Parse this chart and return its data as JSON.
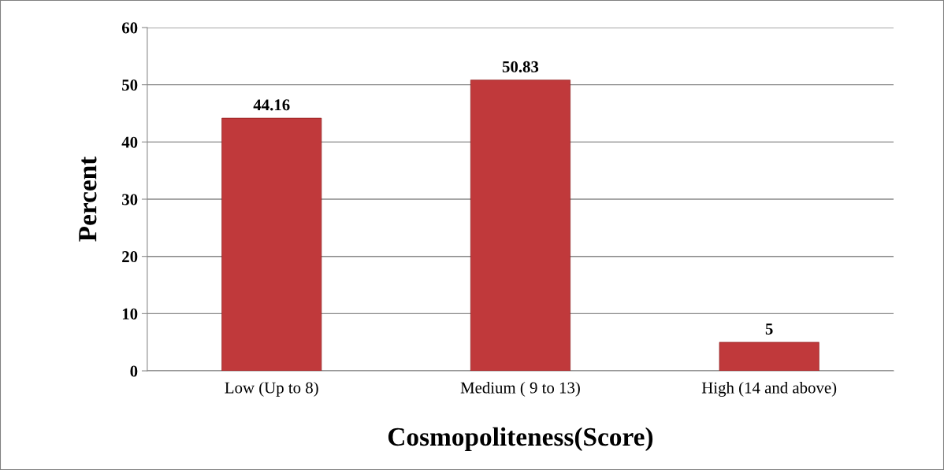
{
  "chart_data": {
    "type": "bar",
    "xlabel": "Cosmopoliteness(Score)",
    "ylabel": "Percent",
    "categories": [
      "Low (Up to 8)",
      "Medium ( 9 to 13)",
      "High (14 and above)"
    ],
    "values": [
      44.16,
      50.83,
      5
    ],
    "color": "#c0393b",
    "ylim": [
      0,
      60
    ],
    "yticks": [
      0,
      10,
      20,
      30,
      40,
      50,
      60
    ],
    "grid": "y",
    "data_labels": true
  }
}
